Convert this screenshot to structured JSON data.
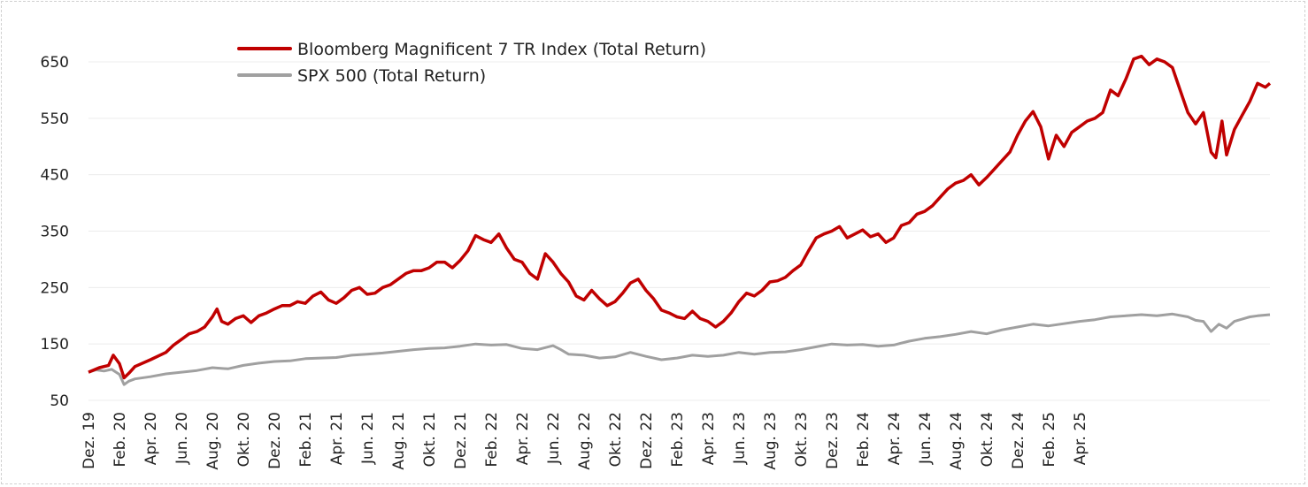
{
  "chart_data": {
    "type": "line",
    "title": "",
    "xlabel": "",
    "ylabel": "",
    "ylim": [
      50,
      700
    ],
    "yticks": [
      50,
      150,
      250,
      350,
      450,
      550,
      650
    ],
    "x_tick_labels": [
      "Dez. 19",
      "Feb. 20",
      "Apr. 20",
      "Jun. 20",
      "Aug. 20",
      "Okt. 20",
      "Dez. 20",
      "Feb. 21",
      "Apr. 21",
      "Jun. 21",
      "Aug. 21",
      "Okt. 21",
      "Dez. 21",
      "Feb. 22",
      "Apr. 22",
      "Jun. 22",
      "Aug. 22",
      "Okt. 22",
      "Dez. 22",
      "Feb. 23",
      "Apr. 23",
      "Jun. 23",
      "Aug. 23",
      "Okt. 23",
      "Dez. 23",
      "Feb. 24",
      "Apr. 24",
      "Jun. 24",
      "Aug. 24",
      "Okt. 24",
      "Dez. 24",
      "Feb. 25",
      "Apr. 25"
    ],
    "grid": true,
    "legend_position": "top-left",
    "x_units": "months since Dez. 19",
    "series": [
      {
        "name": "Bloomberg Magnificent 7 TR Index (Total Return)",
        "color": "#c00000",
        "points": [
          [
            0,
            100
          ],
          [
            0.7,
            108
          ],
          [
            1.3,
            112
          ],
          [
            1.6,
            130
          ],
          [
            2.0,
            115
          ],
          [
            2.3,
            90
          ],
          [
            2.6,
            98
          ],
          [
            3.0,
            110
          ],
          [
            4.0,
            122
          ],
          [
            5.0,
            135
          ],
          [
            5.5,
            148
          ],
          [
            6.0,
            158
          ],
          [
            6.5,
            168
          ],
          [
            7.0,
            172
          ],
          [
            7.5,
            180
          ],
          [
            8.0,
            198
          ],
          [
            8.3,
            212
          ],
          [
            8.6,
            190
          ],
          [
            9.0,
            185
          ],
          [
            9.5,
            195
          ],
          [
            10.0,
            200
          ],
          [
            10.5,
            188
          ],
          [
            11.0,
            200
          ],
          [
            11.5,
            205
          ],
          [
            12.0,
            212
          ],
          [
            12.5,
            218
          ],
          [
            13.0,
            218
          ],
          [
            13.5,
            225
          ],
          [
            14.0,
            222
          ],
          [
            14.5,
            235
          ],
          [
            15.0,
            242
          ],
          [
            15.5,
            228
          ],
          [
            16.0,
            222
          ],
          [
            16.5,
            232
          ],
          [
            17.0,
            245
          ],
          [
            17.5,
            250
          ],
          [
            18.0,
            238
          ],
          [
            18.5,
            240
          ],
          [
            19.0,
            250
          ],
          [
            19.5,
            255
          ],
          [
            20.0,
            265
          ],
          [
            20.5,
            275
          ],
          [
            21.0,
            280
          ],
          [
            21.5,
            280
          ],
          [
            22.0,
            285
          ],
          [
            22.5,
            295
          ],
          [
            23.0,
            295
          ],
          [
            23.5,
            285
          ],
          [
            24.0,
            298
          ],
          [
            24.5,
            315
          ],
          [
            25.0,
            342
          ],
          [
            25.5,
            335
          ],
          [
            26.0,
            330
          ],
          [
            26.5,
            345
          ],
          [
            27.0,
            320
          ],
          [
            27.5,
            300
          ],
          [
            28.0,
            295
          ],
          [
            28.5,
            275
          ],
          [
            29.0,
            265
          ],
          [
            29.5,
            310
          ],
          [
            30.0,
            295
          ],
          [
            30.5,
            275
          ],
          [
            31.0,
            260
          ],
          [
            31.5,
            235
          ],
          [
            32.0,
            228
          ],
          [
            32.5,
            245
          ],
          [
            33.0,
            230
          ],
          [
            33.5,
            218
          ],
          [
            34.0,
            225
          ],
          [
            34.5,
            240
          ],
          [
            35.0,
            258
          ],
          [
            35.5,
            265
          ],
          [
            36.0,
            245
          ],
          [
            36.5,
            230
          ],
          [
            37.0,
            210
          ],
          [
            37.5,
            205
          ],
          [
            38.0,
            198
          ],
          [
            38.5,
            195
          ],
          [
            39.0,
            208
          ],
          [
            39.5,
            195
          ],
          [
            40.0,
            190
          ],
          [
            40.5,
            180
          ],
          [
            41.0,
            190
          ],
          [
            41.5,
            205
          ],
          [
            42.0,
            225
          ],
          [
            42.5,
            240
          ],
          [
            43.0,
            235
          ],
          [
            43.5,
            245
          ],
          [
            44.0,
            260
          ],
          [
            44.5,
            262
          ],
          [
            45.0,
            268
          ],
          [
            45.5,
            280
          ],
          [
            46.0,
            290
          ],
          [
            46.5,
            315
          ],
          [
            47.0,
            338
          ],
          [
            47.5,
            345
          ],
          [
            48.0,
            350
          ],
          [
            48.5,
            358
          ],
          [
            49.0,
            338
          ],
          [
            49.5,
            345
          ],
          [
            50.0,
            352
          ],
          [
            50.5,
            340
          ],
          [
            51.0,
            345
          ],
          [
            51.5,
            330
          ],
          [
            52.0,
            338
          ],
          [
            52.5,
            360
          ],
          [
            53.0,
            365
          ],
          [
            53.5,
            380
          ],
          [
            54.0,
            385
          ],
          [
            54.5,
            395
          ],
          [
            55.0,
            410
          ],
          [
            55.5,
            425
          ],
          [
            56.0,
            435
          ],
          [
            56.5,
            440
          ],
          [
            57.0,
            450
          ],
          [
            57.5,
            432
          ],
          [
            58.0,
            445
          ],
          [
            58.5,
            460
          ],
          [
            59.0,
            475
          ],
          [
            59.5,
            490
          ],
          [
            60.0,
            520
          ],
          [
            60.5,
            545
          ],
          [
            61.0,
            562
          ],
          [
            61.5,
            535
          ],
          [
            62.0,
            478
          ],
          [
            62.5,
            520
          ],
          [
            63.0,
            500
          ],
          [
            63.5,
            525
          ],
          [
            64.0,
            535
          ],
          [
            64.5,
            545
          ],
          [
            65.0,
            550
          ],
          [
            65.5,
            560
          ],
          [
            66.0,
            600
          ],
          [
            66.5,
            590
          ],
          [
            67.0,
            620
          ],
          [
            67.5,
            655
          ],
          [
            68.0,
            660
          ],
          [
            68.5,
            645
          ],
          [
            69.0,
            655
          ],
          [
            69.5,
            650
          ],
          [
            70.0,
            640
          ],
          [
            70.5,
            600
          ],
          [
            71.0,
            560
          ],
          [
            71.5,
            540
          ],
          [
            72.0,
            560
          ],
          [
            72.5,
            490
          ],
          [
            72.8,
            480
          ],
          [
            73.2,
            545
          ],
          [
            73.5,
            485
          ],
          [
            74.0,
            530
          ],
          [
            74.5,
            555
          ],
          [
            75.0,
            580
          ],
          [
            75.5,
            612
          ],
          [
            76.0,
            605
          ],
          [
            76.3,
            612
          ]
        ]
      },
      {
        "name": "SPX 500 (Total Return)",
        "color": "#a0a0a0",
        "points": [
          [
            0,
            100
          ],
          [
            0.5,
            104
          ],
          [
            1.0,
            102
          ],
          [
            1.5,
            105
          ],
          [
            2.0,
            96
          ],
          [
            2.3,
            78
          ],
          [
            2.6,
            84
          ],
          [
            3.0,
            88
          ],
          [
            4.0,
            92
          ],
          [
            5.0,
            97
          ],
          [
            6.0,
            100
          ],
          [
            7.0,
            103
          ],
          [
            8.0,
            108
          ],
          [
            9.0,
            106
          ],
          [
            10.0,
            112
          ],
          [
            11.0,
            116
          ],
          [
            12.0,
            119
          ],
          [
            13.0,
            120
          ],
          [
            14.0,
            124
          ],
          [
            15.0,
            125
          ],
          [
            16.0,
            126
          ],
          [
            17.0,
            130
          ],
          [
            18.0,
            132
          ],
          [
            19.0,
            134
          ],
          [
            20.0,
            137
          ],
          [
            21.0,
            140
          ],
          [
            22.0,
            142
          ],
          [
            23.0,
            143
          ],
          [
            24.0,
            146
          ],
          [
            25.0,
            150
          ],
          [
            26.0,
            148
          ],
          [
            27.0,
            149
          ],
          [
            28.0,
            142
          ],
          [
            29.0,
            140
          ],
          [
            30.0,
            147
          ],
          [
            30.5,
            140
          ],
          [
            31.0,
            132
          ],
          [
            32.0,
            130
          ],
          [
            33.0,
            125
          ],
          [
            34.0,
            127
          ],
          [
            35.0,
            135
          ],
          [
            36.0,
            128
          ],
          [
            37.0,
            122
          ],
          [
            38.0,
            125
          ],
          [
            39.0,
            130
          ],
          [
            40.0,
            128
          ],
          [
            41.0,
            130
          ],
          [
            42.0,
            135
          ],
          [
            43.0,
            132
          ],
          [
            44.0,
            135
          ],
          [
            45.0,
            136
          ],
          [
            46.0,
            140
          ],
          [
            47.0,
            145
          ],
          [
            48.0,
            150
          ],
          [
            49.0,
            148
          ],
          [
            50.0,
            149
          ],
          [
            51.0,
            146
          ],
          [
            52.0,
            148
          ],
          [
            53.0,
            155
          ],
          [
            54.0,
            160
          ],
          [
            55.0,
            163
          ],
          [
            56.0,
            167
          ],
          [
            57.0,
            172
          ],
          [
            58.0,
            168
          ],
          [
            59.0,
            175
          ],
          [
            60.0,
            180
          ],
          [
            61.0,
            185
          ],
          [
            62.0,
            182
          ],
          [
            63.0,
            186
          ],
          [
            64.0,
            190
          ],
          [
            65.0,
            193
          ],
          [
            66.0,
            198
          ],
          [
            67.0,
            200
          ],
          [
            68.0,
            202
          ],
          [
            69.0,
            200
          ],
          [
            70.0,
            203
          ],
          [
            71.0,
            198
          ],
          [
            71.5,
            192
          ],
          [
            72.0,
            190
          ],
          [
            72.5,
            172
          ],
          [
            73.0,
            185
          ],
          [
            73.5,
            178
          ],
          [
            74.0,
            190
          ],
          [
            74.5,
            194
          ],
          [
            75.0,
            198
          ],
          [
            75.5,
            200
          ],
          [
            76.3,
            202
          ]
        ]
      }
    ]
  }
}
